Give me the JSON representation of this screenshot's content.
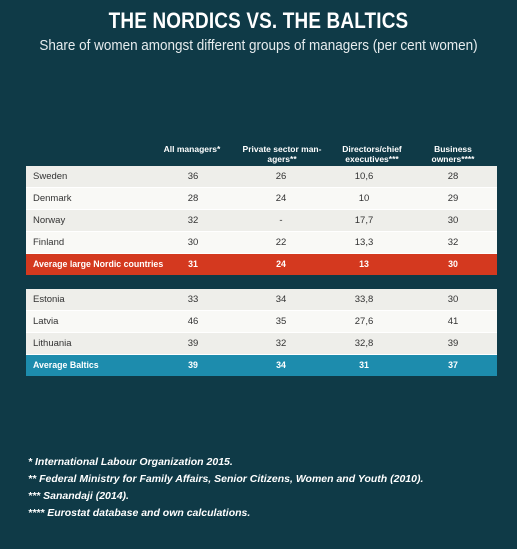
{
  "title": "THE NORDICS VS. THE BALTICS",
  "subtitle": "Share of women amongst different groups of managers (per cent women)",
  "columns": [
    "All managers*",
    "Private sector man-agers**",
    "Directors/chief executives***",
    "Business owners****"
  ],
  "nordic_rows": [
    {
      "name": "Sweden",
      "values": [
        "36",
        "26",
        "10,6",
        "28"
      ]
    },
    {
      "name": "Denmark",
      "values": [
        "28",
        "24",
        "10",
        "29"
      ]
    },
    {
      "name": "Norway",
      "values": [
        "32",
        "-",
        "17,7",
        "30"
      ]
    },
    {
      "name": "Finland",
      "values": [
        "30",
        "22",
        "13,3",
        "32"
      ]
    }
  ],
  "nordic_average": {
    "name": "Average large Nordic countries",
    "values": [
      "31",
      "24",
      "13",
      "30"
    ]
  },
  "baltic_rows": [
    {
      "name": "Estonia",
      "values": [
        "33",
        "34",
        "33,8",
        "30"
      ]
    },
    {
      "name": "Latvia",
      "values": [
        "46",
        "35",
        "27,6",
        "41"
      ]
    },
    {
      "name": "Lithuania",
      "values": [
        "39",
        "32",
        "32,8",
        "39"
      ]
    }
  ],
  "baltic_average": {
    "name": "Average Baltics",
    "values": [
      "39",
      "34",
      "31",
      "37"
    ]
  },
  "notes": [
    "* International Labour Organization 2015.",
    "** Federal Ministry for Family Affairs, Senior Citizens, Women and Youth (2010).",
    "*** Sanandaji (2014).",
    "**** Eurostat database and own calculations."
  ],
  "colors": {
    "background": "#0f3a47",
    "nordic_average": "#d4391f",
    "baltic_average": "#1d8cad"
  }
}
